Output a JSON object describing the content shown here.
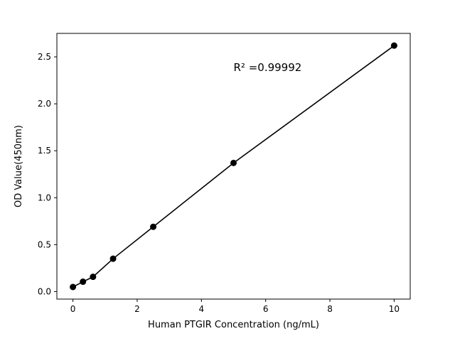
{
  "figure": {
    "background_color": "#ffffff"
  },
  "chart_data": {
    "type": "scatter",
    "x": [
      0,
      0.3125,
      0.625,
      1.25,
      2.5,
      5,
      10
    ],
    "y": [
      0.049,
      0.105,
      0.157,
      0.35,
      0.69,
      1.37,
      2.62
    ],
    "title": "",
    "xlabel": "Human PTGIR Concentration (ng/mL)",
    "ylabel": "OD Value(450nm)",
    "xlim": [
      -0.5,
      10.5
    ],
    "ylim": [
      -0.08,
      2.75
    ],
    "xticks": [
      0,
      2,
      4,
      6,
      8,
      10
    ],
    "xtick_labels": [
      "0",
      "2",
      "4",
      "6",
      "8",
      "10"
    ],
    "yticks": [
      0.0,
      0.5,
      1.0,
      1.5,
      2.0,
      2.5
    ],
    "ytick_labels": [
      "0.0",
      "0.5",
      "1.0",
      "1.5",
      "2.0",
      "2.5"
    ],
    "annotation": {
      "text": "R² =0.99992",
      "x": 5.0,
      "y": 2.35
    },
    "line_color": "#000000",
    "marker_color": "#000000",
    "marker": "circle",
    "grid": false,
    "legend": "none"
  }
}
